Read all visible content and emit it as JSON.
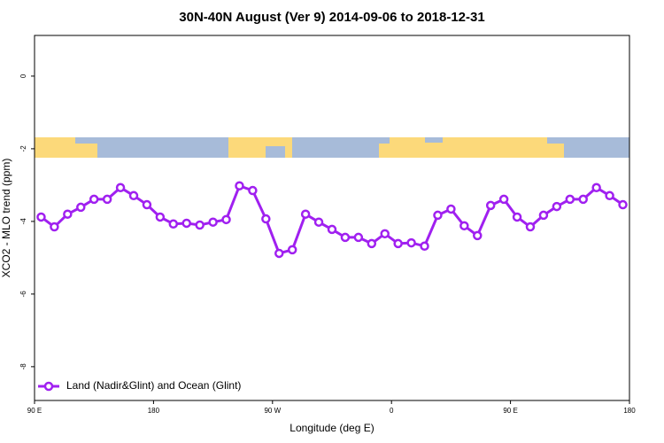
{
  "chart_data": {
    "type": "line",
    "title": "30N-40N August (Ver 9)   2014-09-06 to 2018-12-31",
    "x_label": "Longitude (deg E)",
    "y_label": "XCO2 - MLO trend (ppm)",
    "x": [
      95,
      105,
      115,
      125,
      135,
      145,
      155,
      165,
      175,
      185,
      195,
      205,
      215,
      225,
      235,
      245,
      255,
      265,
      275,
      285,
      295,
      305,
      315,
      325,
      335,
      345,
      355,
      365,
      375,
      385,
      395,
      405,
      415,
      425,
      435,
      445,
      455,
      465,
      475,
      485,
      495,
      505,
      515,
      525,
      535
    ],
    "series": [
      {
        "name": "Land (Nadir&Glint) and Ocean (Glint)",
        "color": "#a020f0",
        "values": [
          -3.88,
          -4.15,
          -3.8,
          -3.61,
          -3.39,
          -3.39,
          -3.07,
          -3.29,
          -3.54,
          -3.88,
          -4.07,
          -4.05,
          -4.1,
          -4.02,
          -3.95,
          -3.02,
          -3.15,
          -3.93,
          -4.88,
          -4.78,
          -3.8,
          -4.02,
          -4.22,
          -4.44,
          -4.44,
          -4.61,
          -4.34,
          -4.61,
          -4.59,
          -4.68,
          -3.83,
          -3.66,
          -4.12,
          -4.39,
          -3.56,
          -3.39,
          -3.88,
          -4.15,
          -3.83,
          -3.59,
          -3.39,
          -3.39,
          -3.07,
          -3.29,
          -3.54
        ]
      }
    ],
    "xlim": [
      90,
      540
    ],
    "xticks": [
      {
        "value": 90,
        "label": "90 E"
      },
      180,
      {
        "value": 270,
        "label": "90 W"
      },
      {
        "value": 360,
        "label": "0"
      },
      {
        "value": 450,
        "label": "90 E"
      },
      {
        "value": 540,
        "label": "180"
      }
    ],
    "ylim": [
      -8.93,
      1.12
    ],
    "yticks": [
      0,
      -2,
      -4,
      -6,
      -8
    ],
    "legend": "bottom-left"
  }
}
